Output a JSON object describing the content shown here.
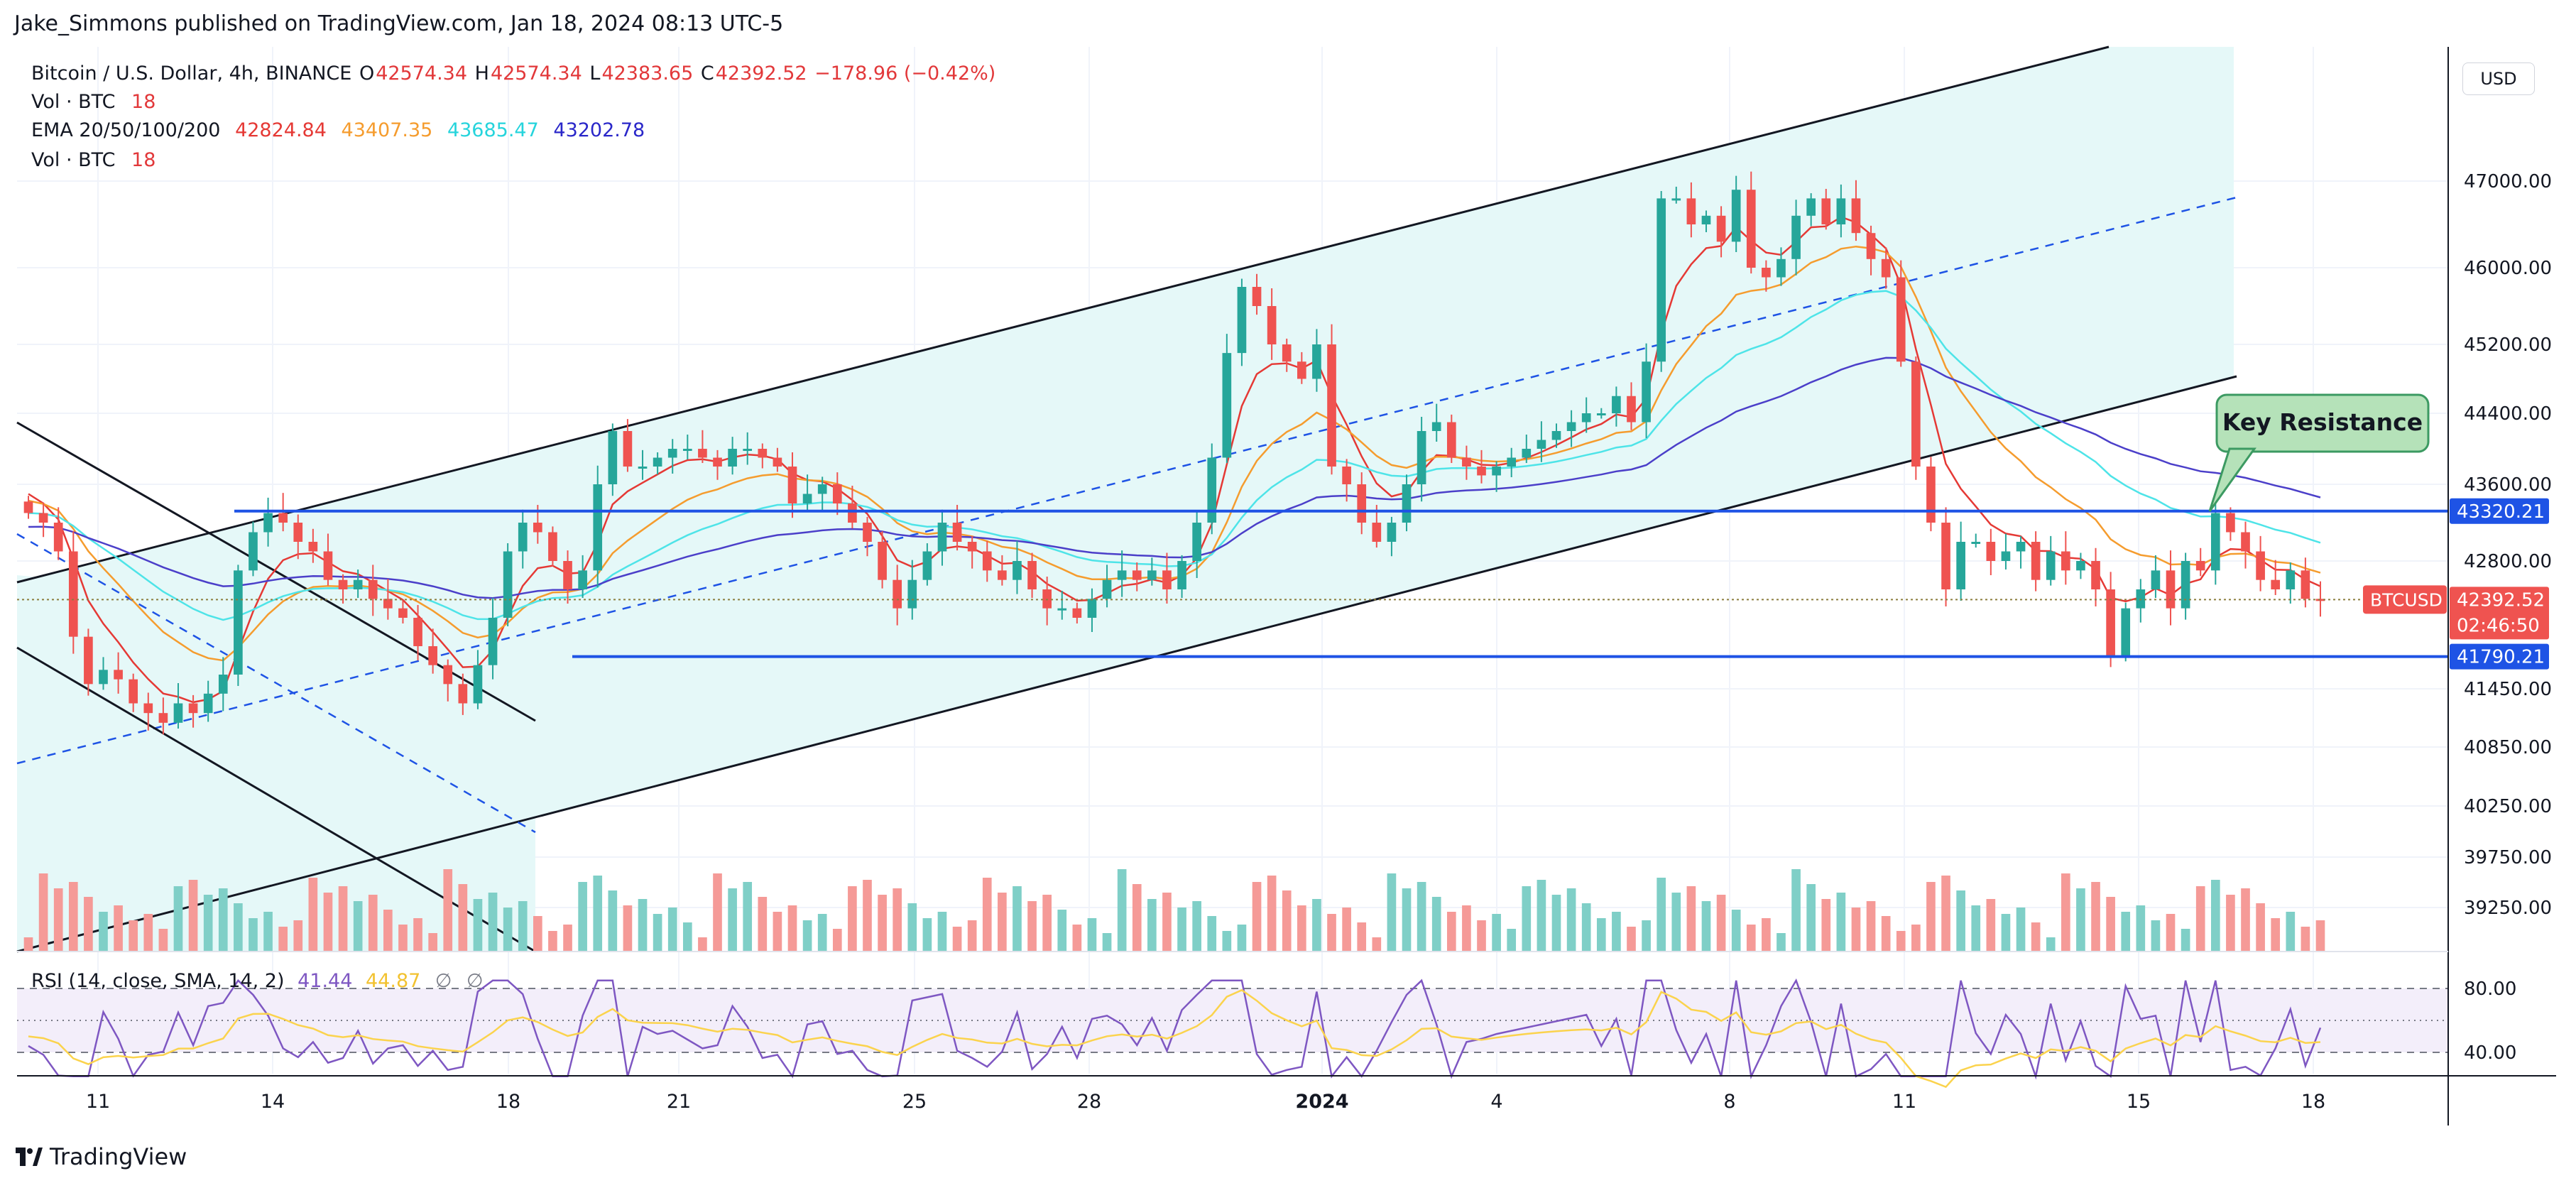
{
  "publisher_line": "Jake_Simmons published on TradingView.com, Jan 18, 2024 08:13 UTC-5",
  "brand": "TradingView",
  "currency_button": "USD",
  "header": {
    "symbol": "Bitcoin / U.S. Dollar, 4h, BINANCE",
    "o_label": "O",
    "o_value": "42574.34",
    "h_label": "H",
    "h_value": "42574.34",
    "l_label": "L",
    "l_value": "42383.65",
    "c_label": "C",
    "c_value": "42392.52",
    "change": "−178.96 (−0.42%)",
    "vol_label": "Vol · BTC",
    "vol_value": "18",
    "ema_label": "EMA 20/50/100/200",
    "ema_values": [
      "42824.84",
      "43407.35",
      "43685.47",
      "43202.78"
    ],
    "vol2_label": "Vol · BTC",
    "vol2_value": "18"
  },
  "rsi": {
    "label": "RSI (14, close, SMA, 14, 2)",
    "value": "41.44",
    "sma_value": "44.87",
    "empty1": "∅",
    "empty2": "∅",
    "ticks": [
      "80.00",
      "40.00"
    ]
  },
  "price_badges": {
    "resistance": "43320.21",
    "support": "41790.21",
    "current": "42392.52",
    "countdown": "02:46:50",
    "symbol_tag": "BTCUSD"
  },
  "annotation": "Key Resistance",
  "colors": {
    "up": "#26a69a",
    "down": "#ef5350",
    "level": "#1e53e5",
    "ema20": "#e53935",
    "ema50": "#f59c2e",
    "ema100": "#4ee4e8",
    "ema200": "#4b3fc9",
    "channel_fill": "#e5f8f8",
    "rsi_line": "#7e57c2",
    "rsi_sma": "#fbd34d",
    "annotation_fill": "#b5e2b9",
    "annotation_border": "#3c9a62"
  },
  "chart_data": {
    "type": "candlestick",
    "interval": "4h",
    "y_ticks": [
      47000,
      46000,
      45200,
      44400,
      43600,
      42800,
      41450,
      40850,
      40250,
      39750,
      39250
    ],
    "y_tick_labels": [
      "47000.00",
      "46000.00",
      "45200.00",
      "44400.00",
      "43600.00",
      "42800.00",
      "41450.00",
      "40850.00",
      "40250.00",
      "39750.00",
      "39250.00"
    ],
    "x_tick_labels": [
      "11",
      "14",
      "18",
      "21",
      "25",
      "28",
      "2024",
      "4",
      "8",
      "11",
      "15",
      "18"
    ],
    "horizontal_levels": [
      43320.21,
      41790.21
    ],
    "current_price": 42392.52,
    "ohlc_last": {
      "open": 42574.34,
      "high": 42574.34,
      "low": 42383.65,
      "close": 42392.52
    },
    "series": [
      {
        "name": "EMA 20",
        "last": 42824.84
      },
      {
        "name": "EMA 50",
        "last": 43407.35
      },
      {
        "name": "EMA 100",
        "last": 43685.47
      },
      {
        "name": "EMA 200",
        "last": 43202.78
      }
    ],
    "close_path": [
      43300,
      43200,
      42900,
      42000,
      41500,
      41650,
      41550,
      41300,
      41200,
      41100,
      41300,
      41200,
      41400,
      41600,
      42700,
      43100,
      43300,
      43200,
      43000,
      42900,
      42600,
      42500,
      42600,
      42400,
      42300,
      42200,
      41900,
      41700,
      41500,
      41300,
      41700,
      42200,
      42900,
      43200,
      43100,
      42800,
      42500,
      42700,
      43600,
      44200,
      43800,
      43800,
      43900,
      44000,
      44000,
      43900,
      43800,
      44000,
      44000,
      43900,
      43800,
      43400,
      43500,
      43600,
      43400,
      43200,
      43000,
      42600,
      42300,
      42600,
      42900,
      43200,
      43000,
      42900,
      42700,
      42600,
      42800,
      42500,
      42300,
      42300,
      42200,
      42400,
      42600,
      42700,
      42600,
      42700,
      42500,
      42800,
      43200,
      43900,
      45100,
      45800,
      45600,
      45200,
      45000,
      44800,
      45200,
      43800,
      43600,
      43200,
      43000,
      43200,
      43600,
      44200,
      44300,
      43900,
      43800,
      43700,
      43800,
      43900,
      44000,
      44100,
      44200,
      44300,
      44400,
      44400,
      44600,
      44300,
      45000,
      46800,
      46800,
      46500,
      46600,
      46300,
      46900,
      46000,
      45900,
      46100,
      46600,
      46800,
      46500,
      46800,
      46400,
      46100,
      45900,
      45000,
      43800,
      43200,
      42500,
      43000,
      43000,
      42800,
      42900,
      43000,
      42600,
      42900,
      42700,
      42800,
      42500,
      41800,
      42300,
      42500,
      42700,
      42300,
      42800,
      42700,
      43300,
      43100,
      42900,
      42600,
      42500,
      42700,
      42400,
      42392.52
    ],
    "volume_bars": 155,
    "rsi_last": 41.44,
    "rsi_sma_last": 44.87
  }
}
